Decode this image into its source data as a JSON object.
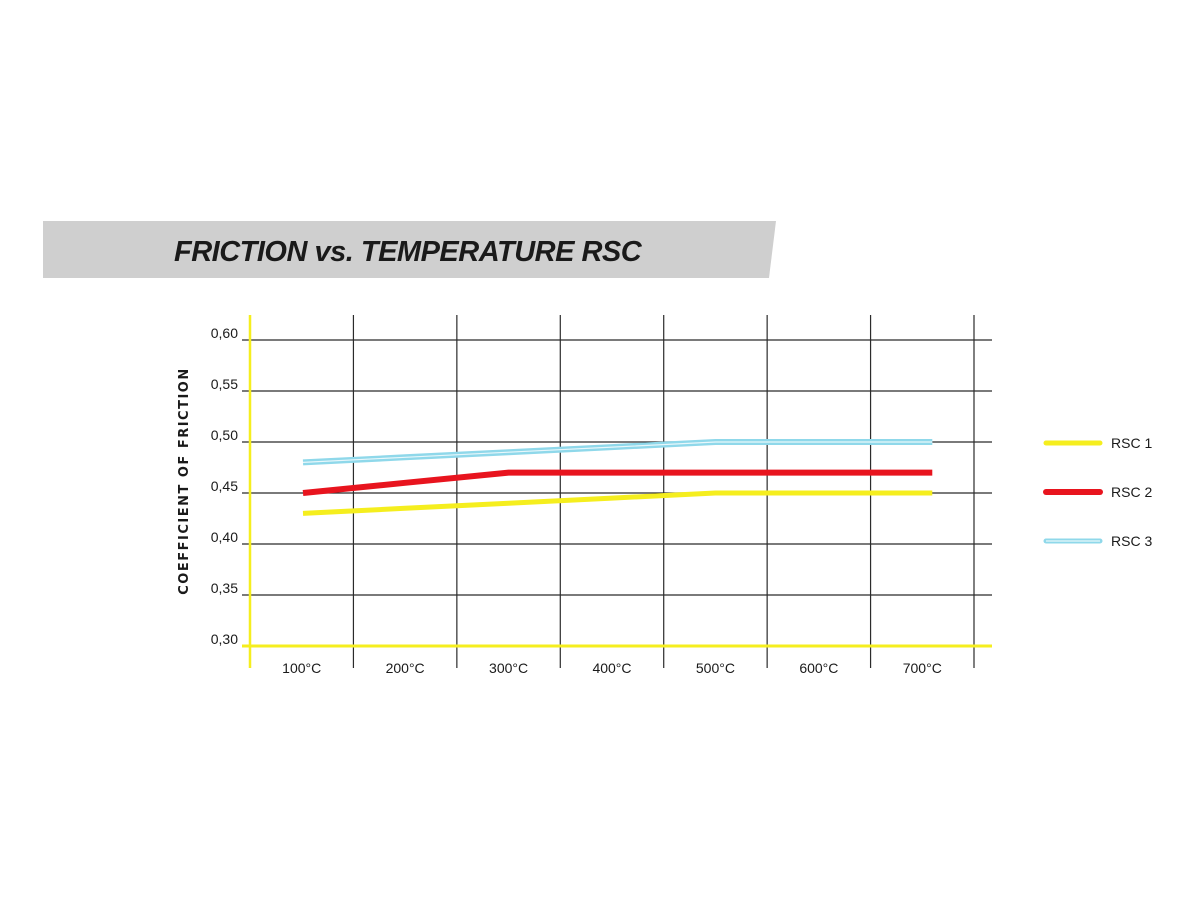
{
  "chart_data": {
    "type": "line",
    "title": "FRICTION vs. TEMPERATURE RSC",
    "ylabel": "COEFFICIENT OF FRICTION",
    "xlabel": "",
    "categories": [
      "100°C",
      "200°C",
      "300°C",
      "400°C",
      "500°C",
      "600°C",
      "700°C"
    ],
    "x": [
      100,
      200,
      300,
      400,
      500,
      600,
      700
    ],
    "y_ticks": [
      0.3,
      0.35,
      0.4,
      0.45,
      0.5,
      0.55,
      0.6
    ],
    "y_tick_labels": [
      "0,30",
      "0,35",
      "0,40",
      "0,45",
      "0,50",
      "0,55",
      "0,60"
    ],
    "ylim": [
      0.3,
      0.6
    ],
    "grid": true,
    "legend_position": "right",
    "series": [
      {
        "name": "RSC 1",
        "color": "#f5ee1e",
        "values": [
          0.43,
          0.435,
          0.44,
          0.445,
          0.45,
          0.45,
          0.45
        ]
      },
      {
        "name": "RSC 2",
        "color": "#e8141e",
        "values": [
          0.45,
          0.46,
          0.47,
          0.47,
          0.47,
          0.47,
          0.47
        ]
      },
      {
        "name": "RSC 3",
        "color": "#8fd8ea",
        "values": [
          0.48,
          0.485,
          0.49,
          0.495,
          0.5,
          0.5,
          0.5
        ]
      }
    ],
    "colors": {
      "title_band": "#cfcfcf",
      "grid": "#2b2b2b",
      "axis": "#f5ee1e"
    }
  }
}
